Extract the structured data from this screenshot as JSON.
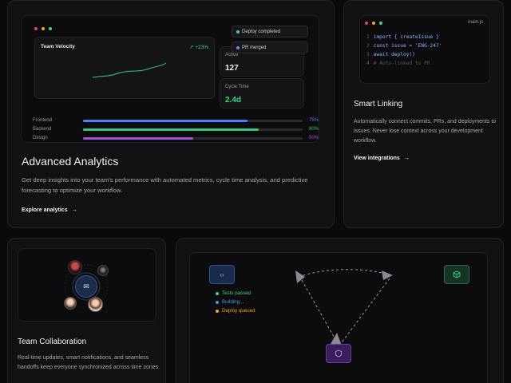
{
  "analytics": {
    "title": "Advanced Analytics",
    "description": "Get deep insights into your team's performance with automated metrics, cycle time analysis, and predictive forecasting to optimize your workflow.",
    "link_label": "Explore analytics",
    "velocity": {
      "label": "Team Velocity",
      "change": "↗ +23%"
    },
    "active": {
      "label": "Active",
      "value": "127"
    },
    "cycle": {
      "label": "Cycle Time",
      "value": "2.4d"
    },
    "toasts": [
      {
        "label": "Deploy completed",
        "color": "#3dd68c"
      },
      {
        "label": "PR merged",
        "color": "#5b8def"
      }
    ],
    "progress": [
      {
        "label": "Frontend",
        "percent": 75,
        "percent_label": "75%",
        "color": "#4f7ff0"
      },
      {
        "label": "Backend",
        "percent": 80,
        "percent_label": "80%",
        "color": "#34c77b"
      },
      {
        "label": "Design",
        "percent": 50,
        "percent_label": "50%",
        "color": "#a24de0"
      }
    ]
  },
  "linking": {
    "title": "Smart Linking",
    "description": "Automatically connect commits, PRs, and deployments to issues. Never lose context across your development workflow.",
    "link_label": "View integrations",
    "file_name": "main.js",
    "code": [
      {
        "n": "1",
        "text": "import { createIssue }"
      },
      {
        "n": "2",
        "text": "const issue = 'ENG-247'"
      },
      {
        "n": "3",
        "text": "await deploy()"
      },
      {
        "n": "4",
        "text": "# Auto-linked to PR"
      }
    ]
  },
  "team": {
    "title": "Team Collaboration",
    "description": "Real-time updates, smart notifications, and seamless handoffs keep everyone synchronized across time zones."
  },
  "flow": {
    "statuses": [
      {
        "label": "Tests passed",
        "color": "#3dd68c"
      },
      {
        "label": "Building...",
        "color": "#5b8def"
      },
      {
        "label": "Deploy queued",
        "color": "#f5a524"
      }
    ]
  },
  "icons": {
    "arrow": "→",
    "code": "‹›",
    "mail": "✉"
  }
}
